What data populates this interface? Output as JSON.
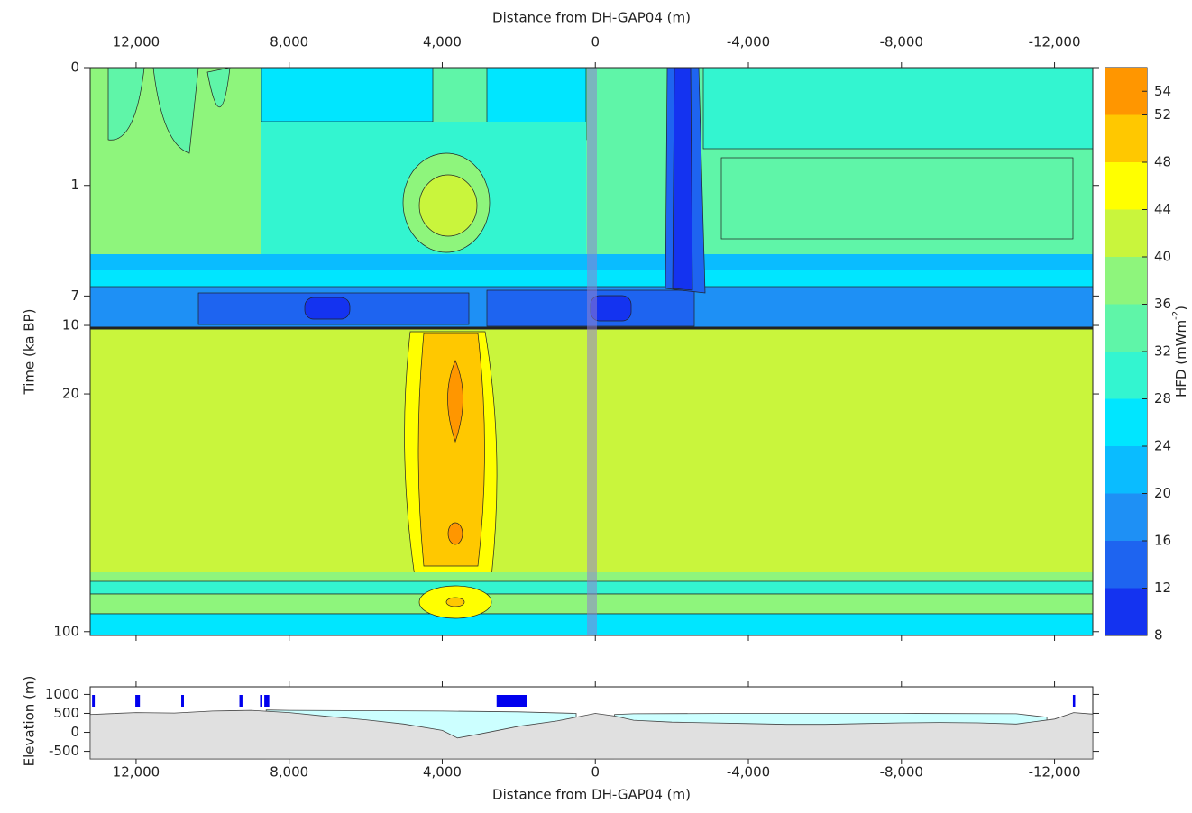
{
  "chart_data": [
    {
      "type": "contour",
      "x_label": "Distance from DH-GAP04 (m)",
      "y_label": "Time (ka BP)",
      "colorbar_label": {
        "text": "HFD (mWm",
        "superscript": "-2",
        "suffix": ")"
      },
      "xlim": [
        13200,
        -13000
      ],
      "xticks": [
        {
          "value": 12000,
          "label": "12,000"
        },
        {
          "value": 8000,
          "label": "8,000"
        },
        {
          "value": 4000,
          "label": "4,000"
        },
        0,
        {
          "value": -4000,
          "label": "-4,000"
        },
        {
          "value": -8000,
          "label": "-8,000"
        },
        {
          "value": -12000,
          "label": "-12,000"
        }
      ],
      "ylim": [
        0,
        102
      ],
      "yscale": "power",
      "yticks": [
        0,
        1,
        7,
        10,
        20,
        100
      ],
      "zlim": [
        8,
        56
      ],
      "levels": [
        8,
        12,
        16,
        20,
        24,
        28,
        32,
        36,
        40,
        44,
        48,
        52,
        56
      ],
      "level_colors": [
        "#1433f0",
        "#1e64f0",
        "#1e90f5",
        "#0abcff",
        "#00e6ff",
        "#33f5d0",
        "#5ff5a8",
        "#8ef57c",
        "#c9f53c",
        "#ffff00",
        "#ffc800",
        "#ff9600"
      ],
      "zticks": [
        8,
        12,
        16,
        20,
        24,
        28,
        32,
        36,
        40,
        44,
        48,
        52,
        54
      ]
    },
    {
      "type": "area",
      "x_label": "Distance from DH-GAP04 (m)",
      "y_label": "Elevation (m)",
      "xlim": [
        13200,
        -13000
      ],
      "xticks": [
        {
          "value": 12000,
          "label": "12,000"
        },
        {
          "value": 8000,
          "label": "8,000"
        },
        {
          "value": 4000,
          "label": "4,000"
        },
        0,
        {
          "value": -4000,
          "label": "-4,000"
        },
        {
          "value": -8000,
          "label": "-8,000"
        },
        {
          "value": -12000,
          "label": "-12,000"
        }
      ],
      "ylim": [
        -700,
        1200
      ],
      "yticks": [
        1000,
        500,
        0,
        -500
      ],
      "terrain": {
        "color": "#e0e0e0",
        "x": [
          13200,
          12000,
          11000,
          10000,
          9000,
          8000,
          7000,
          6000,
          5000,
          4000,
          3600,
          3000,
          2000,
          1000,
          0,
          -500,
          -1000,
          -2000,
          -3000,
          -4000,
          -5000,
          -6000,
          -7000,
          -8000,
          -9000,
          -10000,
          -11000,
          -12000,
          -12500,
          -13000
        ],
        "values": [
          470,
          520,
          510,
          560,
          580,
          520,
          420,
          330,
          220,
          50,
          -150,
          -40,
          160,
          300,
          500,
          430,
          320,
          270,
          250,
          230,
          210,
          210,
          230,
          250,
          260,
          250,
          220,
          350,
          520,
          480
        ]
      },
      "water_surface": {
        "color": "#ccffff",
        "x": [
          8600,
          8000,
          6000,
          4000,
          2000,
          500,
          0,
          -500,
          -1000,
          -4000,
          -8000,
          -11000,
          -11800
        ],
        "values": [
          590,
          580,
          570,
          560,
          540,
          500,
          null,
          470,
          490,
          500,
          500,
          490,
          400
        ]
      },
      "boreholes": {
        "color": "#0000ee",
        "x": [
          [
            13150,
            13080
          ],
          [
            12020,
            11900
          ],
          [
            10820,
            10750
          ],
          [
            9300,
            9220
          ],
          [
            8760,
            8700
          ],
          [
            8650,
            8520
          ],
          [
            1780,
            2580
          ],
          [
            -12480,
            -12540
          ]
        ]
      }
    }
  ]
}
